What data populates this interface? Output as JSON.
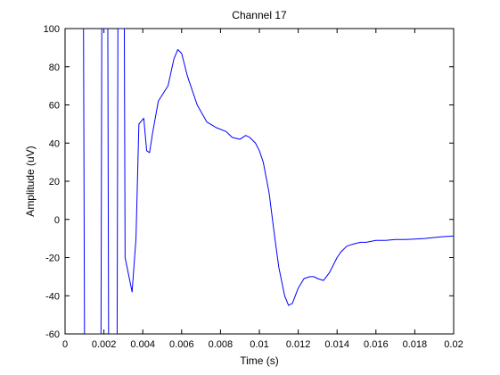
{
  "chart_data": {
    "type": "line",
    "title": "Channel 17",
    "xlabel": "Time (s)",
    "ylabel": "Amplitude (uV)",
    "xlim": [
      0,
      0.02
    ],
    "ylim": [
      -60,
      100
    ],
    "grid": false,
    "x_ticks": [
      0,
      0.002,
      0.004,
      0.006,
      0.008,
      0.01,
      0.012,
      0.014,
      0.016,
      0.018,
      0.02
    ],
    "x_tick_labels": [
      "0",
      "0.002",
      "0.004",
      "0.006",
      "0.008",
      "0.01",
      "0.012",
      "0.014",
      "0.016",
      "0.018",
      "0.02"
    ],
    "y_ticks": [
      -60,
      -40,
      -20,
      0,
      20,
      40,
      60,
      80,
      100
    ],
    "y_tick_labels": [
      "-60",
      "-40",
      "-20",
      "0",
      "20",
      "40",
      "60",
      "80",
      "100"
    ],
    "line_color": "#0000ff",
    "series": [
      {
        "x": [
          0.00095,
          0.001,
          0.00185,
          0.00189,
          0.0022,
          0.00224,
          0.00268,
          0.00272,
          0.00305,
          0.00309,
          0.00345,
          0.00365,
          0.0038,
          0.00405,
          0.0042,
          0.00435,
          0.0045,
          0.0048,
          0.0053,
          0.0056,
          0.0058,
          0.006,
          0.0063,
          0.0068,
          0.0073,
          0.0078,
          0.0083,
          0.0086,
          0.009,
          0.0093,
          0.0095,
          0.0098,
          0.01,
          0.0102,
          0.0105,
          0.0108,
          0.011,
          0.0113,
          0.0115,
          0.0117,
          0.012,
          0.0123,
          0.0126,
          0.0128,
          0.013,
          0.0133,
          0.0136,
          0.014,
          0.0142,
          0.0145,
          0.0148,
          0.0152,
          0.0155,
          0.016,
          0.0165,
          0.017,
          0.0175,
          0.018,
          0.0185,
          0.019,
          0.0195,
          0.02
        ],
        "y": [
          100,
          -60,
          -60,
          100,
          100,
          -60,
          -60,
          100,
          100,
          -20,
          -38,
          -10,
          50,
          53,
          36,
          35,
          45,
          62,
          70,
          84,
          89,
          87,
          75,
          60,
          51,
          48,
          46,
          43,
          42,
          44,
          43,
          40,
          36,
          30,
          14,
          -10,
          -25,
          -40,
          -45,
          -44,
          -36,
          -31,
          -30,
          -30,
          -31,
          -32,
          -28,
          -20,
          -17,
          -14,
          -13,
          -12,
          -12,
          -11,
          -11,
          -10.5,
          -10.5,
          -10.3,
          -10,
          -9.5,
          -9,
          -8.7
        ]
      }
    ]
  }
}
